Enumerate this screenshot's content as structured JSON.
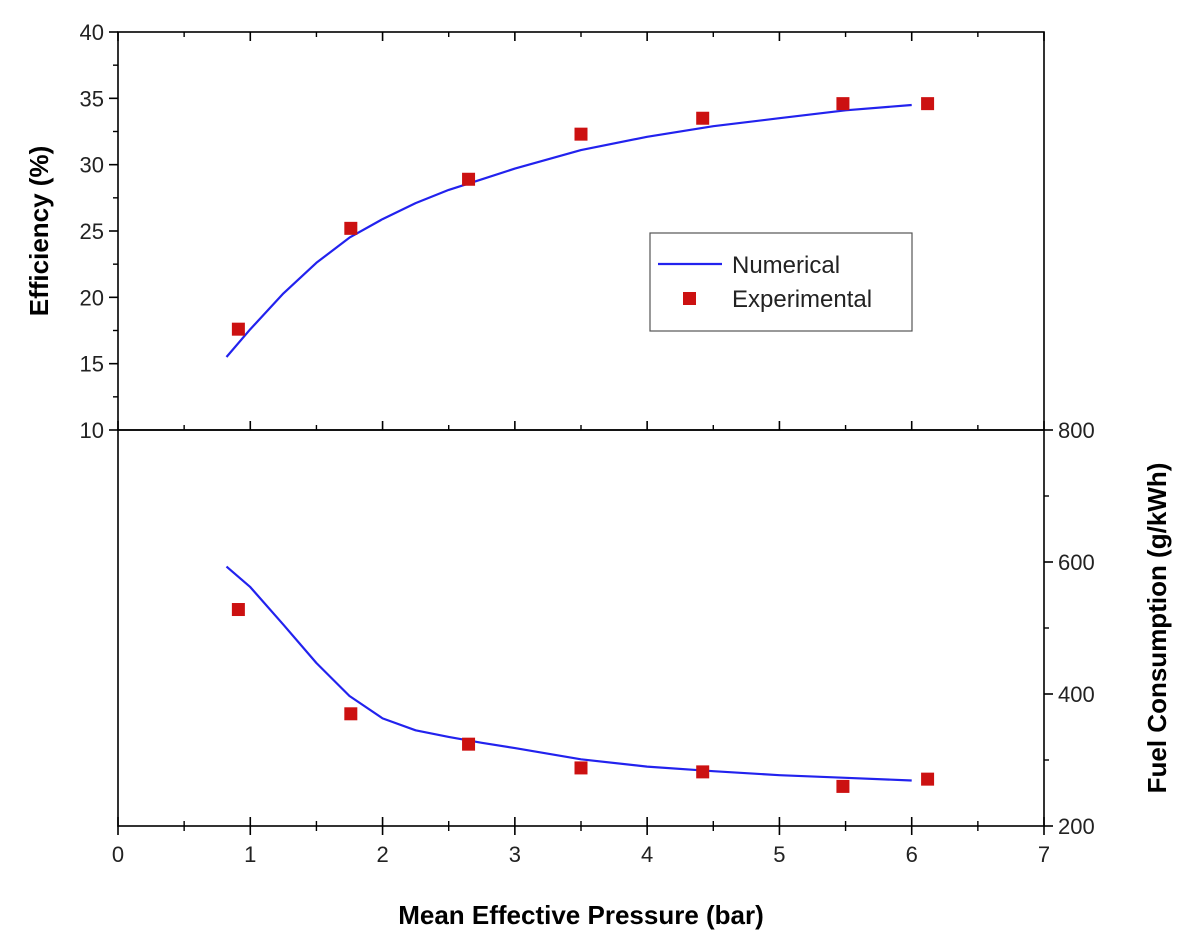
{
  "chart_data": {
    "type": "line+scatter",
    "colors": {
      "numerical": "#2222ee",
      "experimental": "#cc1111",
      "axes": "#000000"
    },
    "legend": {
      "placement": "top-panel-right",
      "entries": [
        "Numerical",
        "Experimental"
      ]
    },
    "x_axis": {
      "label": "Mean Effective Pressure (bar)",
      "range": [
        0,
        7
      ],
      "ticks": [
        "0",
        "1",
        "2",
        "3",
        "4",
        "5",
        "6",
        "7"
      ]
    },
    "panels": [
      {
        "name": "efficiency",
        "ylabel": "Efficiency (%)",
        "y_side": "left",
        "ylim": [
          10,
          40
        ],
        "yticks": [
          "10",
          "15",
          "20",
          "25",
          "30",
          "35",
          "40"
        ],
        "series": [
          {
            "name": "Numerical",
            "kind": "line",
            "x": [
              0.82,
              1.0,
              1.25,
              1.5,
              1.75,
              2.0,
              2.25,
              2.5,
              2.75,
              3.0,
              3.5,
              4.0,
              4.5,
              5.0,
              5.5,
              6.0
            ],
            "y": [
              15.5,
              17.6,
              20.3,
              22.6,
              24.5,
              25.9,
              27.1,
              28.1,
              28.9,
              29.7,
              31.1,
              32.1,
              32.9,
              33.5,
              34.1,
              34.5
            ]
          },
          {
            "name": "Experimental",
            "kind": "scatter",
            "x": [
              0.91,
              1.76,
              2.65,
              3.5,
              4.42,
              5.48,
              6.12
            ],
            "y": [
              17.6,
              25.2,
              28.9,
              32.3,
              33.5,
              34.6,
              34.6
            ]
          }
        ]
      },
      {
        "name": "fuel",
        "ylabel": "Fuel Consumption (g/kWh)",
        "y_side": "right",
        "ylim": [
          200,
          800
        ],
        "yticks": [
          "200",
          "400",
          "600",
          "800"
        ],
        "series": [
          {
            "name": "Numerical",
            "kind": "line",
            "x": [
              0.82,
              1.0,
              1.25,
              1.5,
              1.75,
              2.0,
              2.25,
              2.5,
              2.75,
              3.0,
              3.5,
              4.0,
              4.5,
              5.0,
              5.5,
              6.0
            ],
            "y": [
              593,
              562,
              505,
              447,
              397,
              363,
              345,
              335,
              326,
              318,
              301,
              290,
              283,
              277,
              273,
              269
            ]
          },
          {
            "name": "Experimental",
            "kind": "scatter",
            "x": [
              0.91,
              1.76,
              2.65,
              3.5,
              4.42,
              5.48,
              6.12
            ],
            "y": [
              528,
              370,
              324,
              288,
              282,
              260,
              271
            ]
          }
        ]
      }
    ]
  }
}
